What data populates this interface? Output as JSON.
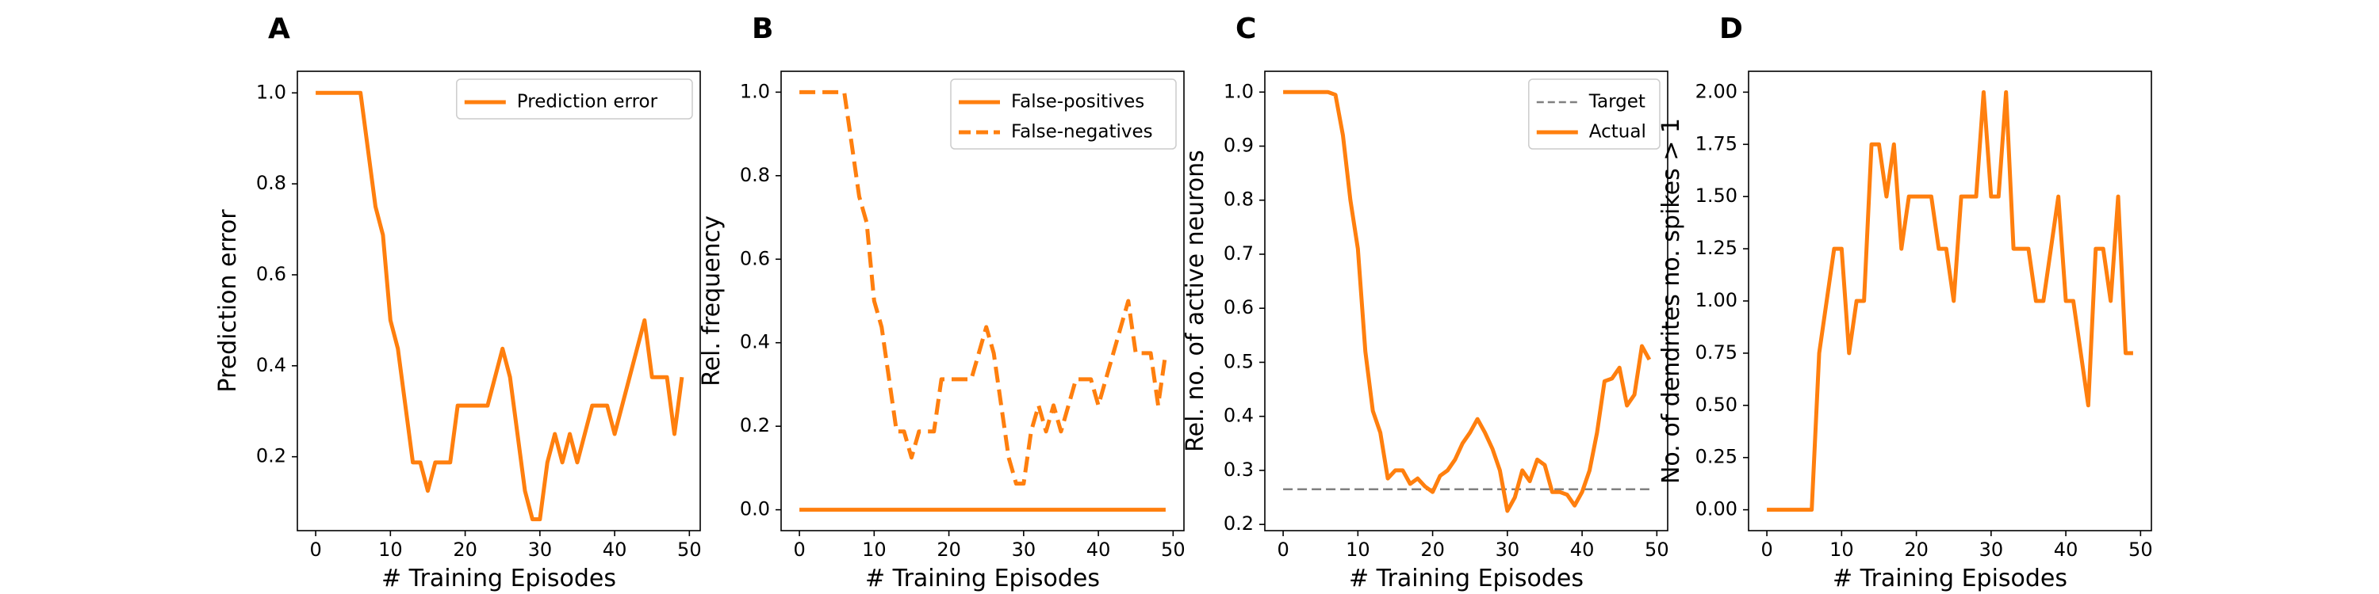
{
  "colors": {
    "series": "#ff7f0e",
    "target": "#808080",
    "axis": "#000000",
    "legend_border": "#cccccc"
  },
  "chart_data": [
    {
      "type": "line",
      "panel_letter": "A",
      "xlabel": "# Training Episodes",
      "ylabel": "Prediction error",
      "xlim": [
        -2.45,
        51.45
      ],
      "ylim": [
        0.0375,
        1.0475
      ],
      "xticks": [
        0,
        10,
        20,
        30,
        40,
        50
      ],
      "yticks": [
        0.2,
        0.4,
        0.6,
        0.8,
        1.0
      ],
      "ytick_format": 1,
      "legend": {
        "position": "upper right"
      },
      "series": [
        {
          "name": "Prediction error",
          "style": "solid",
          "x": [
            0,
            1,
            2,
            3,
            4,
            5,
            6,
            7,
            8,
            9,
            10,
            11,
            12,
            13,
            14,
            15,
            16,
            17,
            18,
            19,
            20,
            21,
            22,
            23,
            24,
            25,
            26,
            27,
            28,
            29,
            30,
            31,
            32,
            33,
            34,
            35,
            36,
            37,
            38,
            39,
            40,
            41,
            42,
            43,
            44,
            45,
            46,
            47,
            48,
            49
          ],
          "y": [
            1.0,
            1.0,
            1.0,
            1.0,
            1.0,
            1.0,
            1.0,
            0.875,
            0.75,
            0.6875,
            0.5,
            0.4375,
            0.3125,
            0.1875,
            0.1875,
            0.125,
            0.1875,
            0.1875,
            0.1875,
            0.3125,
            0.3125,
            0.3125,
            0.3125,
            0.3125,
            0.375,
            0.4375,
            0.375,
            0.25,
            0.125,
            0.0625,
            0.0625,
            0.1875,
            0.25,
            0.1875,
            0.25,
            0.1875,
            0.25,
            0.3125,
            0.3125,
            0.3125,
            0.25,
            0.3125,
            0.375,
            0.4375,
            0.5,
            0.375,
            0.375,
            0.375,
            0.25,
            0.375
          ]
        }
      ]
    },
    {
      "type": "line",
      "panel_letter": "B",
      "xlabel": "# Training Episodes",
      "ylabel": "Rel. frequency",
      "xlim": [
        -2.45,
        51.45
      ],
      "ylim": [
        -0.05,
        1.05
      ],
      "xticks": [
        0,
        10,
        20,
        30,
        40,
        50
      ],
      "yticks": [
        0.0,
        0.2,
        0.4,
        0.6,
        0.8,
        1.0
      ],
      "ytick_format": 1,
      "legend": {
        "position": "upper right"
      },
      "series": [
        {
          "name": "False-positives",
          "style": "solid",
          "x": [
            0,
            49
          ],
          "y": [
            0.0,
            0.0
          ]
        },
        {
          "name": "False-negatives",
          "style": "dashed",
          "x": [
            0,
            1,
            2,
            3,
            4,
            5,
            6,
            7,
            8,
            9,
            10,
            11,
            12,
            13,
            14,
            15,
            16,
            17,
            18,
            19,
            20,
            21,
            22,
            23,
            24,
            25,
            26,
            27,
            28,
            29,
            30,
            31,
            32,
            33,
            34,
            35,
            36,
            37,
            38,
            39,
            40,
            41,
            42,
            43,
            44,
            45,
            46,
            47,
            48,
            49
          ],
          "y": [
            1.0,
            1.0,
            1.0,
            1.0,
            1.0,
            1.0,
            1.0,
            0.875,
            0.75,
            0.6875,
            0.5,
            0.4375,
            0.3125,
            0.1875,
            0.1875,
            0.125,
            0.1875,
            0.1875,
            0.1875,
            0.3125,
            0.3125,
            0.3125,
            0.3125,
            0.3125,
            0.375,
            0.4375,
            0.375,
            0.25,
            0.125,
            0.0625,
            0.0625,
            0.1875,
            0.25,
            0.1875,
            0.25,
            0.1875,
            0.25,
            0.3125,
            0.3125,
            0.3125,
            0.25,
            0.3125,
            0.375,
            0.4375,
            0.5,
            0.375,
            0.375,
            0.375,
            0.25,
            0.375
          ]
        }
      ]
    },
    {
      "type": "line",
      "panel_letter": "C",
      "xlabel": "# Training Episodes",
      "ylabel": "Rel. no. of active neurons",
      "xlim": [
        -2.45,
        51.45
      ],
      "ylim": [
        0.1885,
        1.0385
      ],
      "xticks": [
        0,
        10,
        20,
        30,
        40,
        50
      ],
      "yticks": [
        0.2,
        0.3,
        0.4,
        0.5,
        0.6,
        0.7,
        0.8,
        0.9,
        1.0
      ],
      "ytick_format": 1,
      "legend": {
        "position": "upper right"
      },
      "series": [
        {
          "name": "Target",
          "style": "dashed",
          "color_key": "target",
          "x": [
            0,
            49
          ],
          "y": [
            0.265,
            0.265
          ]
        },
        {
          "name": "Actual",
          "style": "solid",
          "x": [
            0,
            1,
            2,
            3,
            4,
            5,
            6,
            7,
            8,
            9,
            10,
            11,
            12,
            13,
            14,
            15,
            16,
            17,
            18,
            19,
            20,
            21,
            22,
            23,
            24,
            25,
            26,
            27,
            28,
            29,
            30,
            31,
            32,
            33,
            34,
            35,
            36,
            37,
            38,
            39,
            40,
            41,
            42,
            43,
            44,
            45,
            46,
            47,
            48,
            49
          ],
          "y": [
            1.0,
            1.0,
            1.0,
            1.0,
            1.0,
            1.0,
            1.0,
            0.995,
            0.92,
            0.8,
            0.71,
            0.52,
            0.41,
            0.37,
            0.285,
            0.3,
            0.3,
            0.275,
            0.285,
            0.27,
            0.26,
            0.29,
            0.3,
            0.32,
            0.35,
            0.37,
            0.395,
            0.37,
            0.34,
            0.3,
            0.225,
            0.25,
            0.3,
            0.28,
            0.32,
            0.31,
            0.26,
            0.26,
            0.255,
            0.235,
            0.26,
            0.3,
            0.37,
            0.465,
            0.47,
            0.49,
            0.42,
            0.44,
            0.53,
            0.505
          ]
        }
      ]
    },
    {
      "type": "line",
      "panel_letter": "D",
      "xlabel": "# Training Episodes",
      "ylabel": "No. of dendrites no. spikes > 1",
      "xlim": [
        -2.45,
        51.45
      ],
      "ylim": [
        -0.1,
        2.1
      ],
      "xticks": [
        0,
        10,
        20,
        30,
        40,
        50
      ],
      "yticks": [
        0.0,
        0.25,
        0.5,
        0.75,
        1.0,
        1.25,
        1.5,
        1.75,
        2.0
      ],
      "ytick_format": 2,
      "series": [
        {
          "style": "solid",
          "x": [
            0,
            1,
            2,
            3,
            4,
            5,
            6,
            7,
            8,
            9,
            10,
            11,
            12,
            13,
            14,
            15,
            16,
            17,
            18,
            19,
            20,
            21,
            22,
            23,
            24,
            25,
            26,
            27,
            28,
            29,
            30,
            31,
            32,
            33,
            34,
            35,
            36,
            37,
            38,
            39,
            40,
            41,
            42,
            43,
            44,
            45,
            46,
            47,
            48,
            49
          ],
          "y": [
            0,
            0,
            0,
            0,
            0,
            0,
            0,
            0.75,
            1.0,
            1.25,
            1.25,
            0.75,
            1.0,
            1.0,
            1.75,
            1.75,
            1.5,
            1.75,
            1.25,
            1.5,
            1.5,
            1.5,
            1.5,
            1.25,
            1.25,
            1.0,
            1.5,
            1.5,
            1.5,
            2.0,
            1.5,
            1.5,
            2.0,
            1.25,
            1.25,
            1.25,
            1.0,
            1.0,
            1.25,
            1.5,
            1.0,
            1.0,
            0.75,
            0.5,
            1.25,
            1.25,
            1.0,
            1.5,
            0.75,
            0.75
          ]
        }
      ]
    }
  ]
}
